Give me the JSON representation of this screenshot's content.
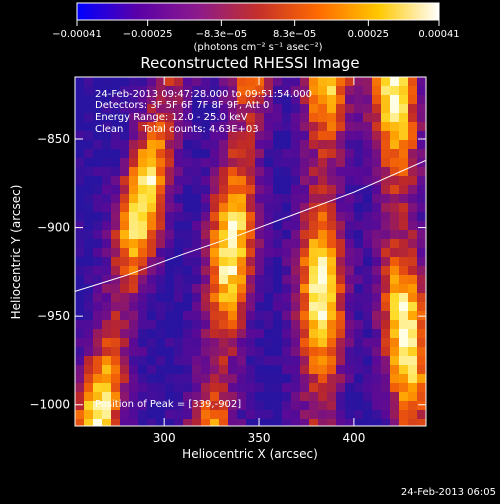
{
  "chart_data": {
    "type": "heatmap",
    "title": "Reconstructed RHESSI Image",
    "xlabel": "Heliocentric X (arcsec)",
    "ylabel": "Heliocentric Y (arcsec)",
    "xlim": [
      253,
      438
    ],
    "ylim": [
      -1012,
      -815
    ],
    "x_ticks": [
      300,
      350,
      400
    ],
    "x_tick_labels": [
      "300",
      "350",
      "400"
    ],
    "y_ticks": [
      -850,
      -900,
      -950,
      -1000
    ],
    "y_tick_labels": [
      "−850",
      "−900",
      "−950",
      "−1000"
    ],
    "colorbar": {
      "min": -0.00041,
      "max": 0.00041,
      "ticks": [
        -0.00041,
        -0.00025,
        -8.3e-05,
        8.3e-05,
        0.00025,
        0.00041
      ],
      "tick_labels": [
        "−0.00041",
        "−0.00025",
        "−8.3e−05",
        "8.3e−05",
        "0.00025",
        "0.00041"
      ],
      "units": "(photons cm⁻² s⁻¹ asec⁻²)",
      "colors": [
        "#0000ff",
        "#5a00a8",
        "#8c1a8c",
        "#c4302a",
        "#ff6a00",
        "#ffc800",
        "#ffffff"
      ]
    },
    "annotations": [
      "24-Feb-2013 09:47:28.000 to 09:51:54.000",
      "Detectors: 3F 5F 6F 7F 8F 9F, Att 0",
      "Energy Range: 12.0 - 25.0 keV",
      "Clean      Total counts: 4.63E+03"
    ],
    "peak_label": "Position of Peak = [339,-902]",
    "peak": [
      339,
      -902
    ],
    "limb_curve": {
      "x": [
        253,
        280,
        310,
        340,
        370,
        400,
        438
      ],
      "y": [
        -936,
        -927,
        -915,
        -904,
        -892,
        -880,
        -862
      ]
    },
    "ridges": [
      {
        "x": 283,
        "tilt": 0.2
      },
      {
        "x": 335,
        "tilt": 0.1
      },
      {
        "x": 383,
        "tilt": 0.02
      },
      {
        "x": 425,
        "tilt": -0.05
      }
    ]
  },
  "footer": {
    "timestamp": "24-Feb-2013 06:05"
  }
}
